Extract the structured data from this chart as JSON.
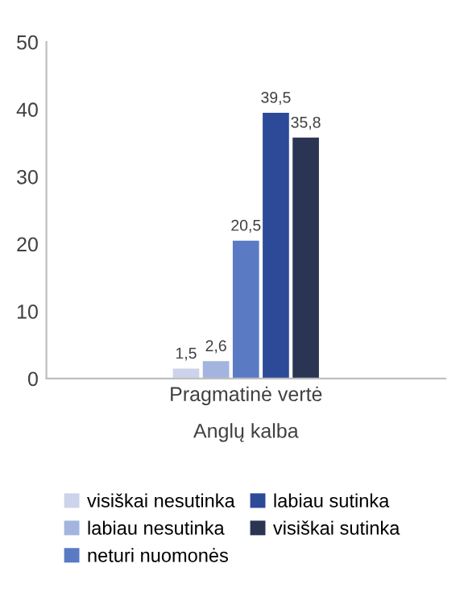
{
  "chart_data": {
    "type": "bar",
    "categories": [
      "Pragmatinė vertė"
    ],
    "xlabel": "Anglų kalba",
    "series": [
      {
        "name": "visiškai nesutinka",
        "color": "#cdd3ea",
        "values": [
          1.5
        ],
        "value_labels": [
          "1,5"
        ]
      },
      {
        "name": "labiau nesutinka",
        "color": "#a3b4df",
        "values": [
          2.6
        ],
        "value_labels": [
          "2,6"
        ]
      },
      {
        "name": "neturi nuomonės",
        "color": "#5a7bc4",
        "values": [
          20.5
        ],
        "value_labels": [
          "20,5"
        ]
      },
      {
        "name": "labiau sutinka",
        "color": "#2d4a99",
        "values": [
          39.5
        ],
        "value_labels": [
          "39,5"
        ]
      },
      {
        "name": "visiškai sutinka",
        "color": "#2a3553",
        "values": [
          35.8
        ],
        "value_labels": [
          "35,8"
        ]
      }
    ],
    "ylim": [
      0,
      50
    ],
    "yticks": [
      0,
      10,
      20,
      30,
      40,
      50
    ],
    "grid": false,
    "legend": "bottom"
  }
}
